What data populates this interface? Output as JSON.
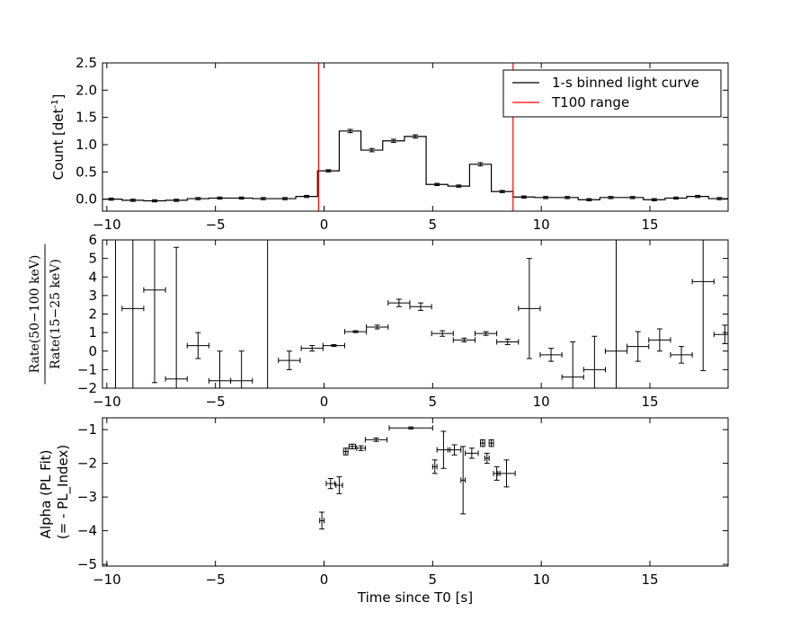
{
  "chart_data": [
    {
      "type": "line",
      "panel": "top",
      "ylabel": "Count [det",
      "ylabel_sup": "-1",
      "ylabel_end": "]",
      "xlim": [
        -10.2,
        18.6
      ],
      "ylim": [
        -0.22,
        2.5
      ],
      "x_ticks": [
        -10,
        -5,
        0,
        5,
        10,
        15
      ],
      "x_tick_labels": [
        "−10",
        "−5",
        "0",
        "5",
        "10",
        "15"
      ],
      "y_ticks": [
        0.0,
        0.5,
        1.0,
        1.5,
        2.0,
        2.5
      ],
      "y_tick_labels": [
        "0.0",
        "0.5",
        "1.0",
        "1.5",
        "2.0",
        "2.5"
      ],
      "legend": {
        "position": "top-right",
        "entries": [
          {
            "label": "1-s binned light curve",
            "color": "#000000"
          },
          {
            "label": "T100 range",
            "color": "#ff0000"
          }
        ]
      },
      "series": [
        {
          "name": "1-s binned light curve",
          "color": "#000000",
          "bin_width": 1.0,
          "bin_starts": [
            -10.3,
            -9.3,
            -8.3,
            -7.3,
            -6.3,
            -5.3,
            -4.3,
            -3.3,
            -2.3,
            -1.3,
            -0.3,
            0.7,
            1.7,
            2.7,
            3.7,
            4.7,
            5.7,
            6.7,
            7.7,
            8.7,
            9.7,
            10.7,
            11.7,
            12.7,
            13.7,
            14.7,
            15.7,
            16.7,
            17.7,
            18.7
          ],
          "values": [
            0.0,
            -0.02,
            -0.03,
            -0.02,
            0.01,
            0.02,
            0.02,
            0.01,
            0.01,
            0.05,
            0.52,
            1.25,
            0.9,
            1.07,
            1.15,
            0.27,
            0.24,
            0.64,
            0.14,
            0.04,
            0.03,
            0.03,
            -0.01,
            0.03,
            0.03,
            -0.01,
            0.02,
            0.05,
            0.01,
            0.0
          ],
          "errors": [
            0.02,
            0.02,
            0.02,
            0.02,
            0.02,
            0.02,
            0.02,
            0.02,
            0.02,
            0.02,
            0.02,
            0.03,
            0.03,
            0.03,
            0.03,
            0.02,
            0.02,
            0.03,
            0.02,
            0.02,
            0.02,
            0.02,
            0.02,
            0.02,
            0.02,
            0.02,
            0.02,
            0.02,
            0.02,
            0.02
          ]
        }
      ],
      "vlines": [
        {
          "name": "T100 range",
          "x": -0.25,
          "color": "#ff0000"
        },
        {
          "name": "T100 range",
          "x": 8.7,
          "color": "#ff0000"
        }
      ]
    },
    {
      "type": "scatter",
      "panel": "middle",
      "ylabel_numerator": "Rate(50−100 keV)",
      "ylabel_denominator": "Rate(15−25 keV)",
      "xlim": [
        -10.2,
        18.6
      ],
      "ylim": [
        -2,
        6
      ],
      "x_ticks": [
        -10,
        -5,
        0,
        5,
        10,
        15
      ],
      "x_tick_labels": [
        "−10",
        "−5",
        "0",
        "5",
        "10",
        "15"
      ],
      "y_ticks": [
        -2,
        -1,
        0,
        1,
        2,
        3,
        4,
        5,
        6
      ],
      "y_tick_labels": [
        "−2",
        "−1",
        "0",
        "1",
        "2",
        "3",
        "4",
        "5",
        "6"
      ],
      "points": [
        {
          "x": -8.8,
          "xerr": 0.5,
          "y": 2.3,
          "yerr_lo": 12.0,
          "yerr_hi": 12.0
        },
        {
          "x": -7.8,
          "xerr": 0.5,
          "y": 3.3,
          "yerr_lo": 5.0,
          "yerr_hi": 12.0
        },
        {
          "x": -6.8,
          "xerr": 0.5,
          "y": -1.5,
          "yerr_lo": 12.0,
          "yerr_hi": 7.1
        },
        {
          "x": -5.8,
          "xerr": 0.5,
          "y": 0.3,
          "yerr_lo": 0.7,
          "yerr_hi": 0.7
        },
        {
          "x": -4.8,
          "xerr": 0.5,
          "y": -1.6,
          "yerr_lo": 12.0,
          "yerr_hi": 1.6
        },
        {
          "x": -3.8,
          "xerr": 0.5,
          "y": -1.6,
          "yerr_lo": 12.0,
          "yerr_hi": 1.6
        },
        {
          "x": -1.6,
          "xerr": 0.5,
          "y": -0.5,
          "yerr_lo": 0.5,
          "yerr_hi": 0.5
        },
        {
          "x": -0.55,
          "xerr": 0.5,
          "y": 0.15,
          "yerr_lo": 0.15,
          "yerr_hi": 0.15
        },
        {
          "x": 0.45,
          "xerr": 0.5,
          "y": 0.3,
          "yerr_lo": 0.05,
          "yerr_hi": 0.05
        },
        {
          "x": 1.45,
          "xerr": 0.5,
          "y": 1.05,
          "yerr_lo": 0.05,
          "yerr_hi": 0.05
        },
        {
          "x": 2.45,
          "xerr": 0.5,
          "y": 1.3,
          "yerr_lo": 0.1,
          "yerr_hi": 0.1
        },
        {
          "x": 3.45,
          "xerr": 0.5,
          "y": 2.6,
          "yerr_lo": 0.2,
          "yerr_hi": 0.2
        },
        {
          "x": 4.45,
          "xerr": 0.5,
          "y": 2.4,
          "yerr_lo": 0.2,
          "yerr_hi": 0.2
        },
        {
          "x": 5.45,
          "xerr": 0.5,
          "y": 0.95,
          "yerr_lo": 0.15,
          "yerr_hi": 0.15
        },
        {
          "x": 6.45,
          "xerr": 0.5,
          "y": 0.6,
          "yerr_lo": 0.1,
          "yerr_hi": 0.1
        },
        {
          "x": 7.45,
          "xerr": 0.5,
          "y": 0.95,
          "yerr_lo": 0.1,
          "yerr_hi": 0.1
        },
        {
          "x": 8.45,
          "xerr": 0.5,
          "y": 0.5,
          "yerr_lo": 0.15,
          "yerr_hi": 0.15
        },
        {
          "x": 9.45,
          "xerr": 0.5,
          "y": 2.3,
          "yerr_lo": 2.7,
          "yerr_hi": 2.7
        },
        {
          "x": 10.45,
          "xerr": 0.5,
          "y": -0.2,
          "yerr_lo": 0.35,
          "yerr_hi": 0.35
        },
        {
          "x": 11.45,
          "xerr": 0.5,
          "y": -1.4,
          "yerr_lo": 1.9,
          "yerr_hi": 1.9
        },
        {
          "x": 12.45,
          "xerr": 0.5,
          "y": -1.0,
          "yerr_lo": 1.8,
          "yerr_hi": 1.8
        },
        {
          "x": 13.45,
          "xerr": 0.5,
          "y": 0.0,
          "yerr_lo": 12.0,
          "yerr_hi": 12.0
        },
        {
          "x": 14.45,
          "xerr": 0.5,
          "y": 0.25,
          "yerr_lo": 0.8,
          "yerr_hi": 0.8
        },
        {
          "x": 15.45,
          "xerr": 0.5,
          "y": 0.6,
          "yerr_lo": 0.6,
          "yerr_hi": 0.6
        },
        {
          "x": 16.45,
          "xerr": 0.5,
          "y": -0.2,
          "yerr_lo": 0.45,
          "yerr_hi": 0.45
        },
        {
          "x": 17.45,
          "xerr": 0.5,
          "y": 3.75,
          "yerr_lo": 4.8,
          "yerr_hi": 4.8
        },
        {
          "x": 18.45,
          "xerr": 0.5,
          "y": 0.9,
          "yerr_lo": 0.5,
          "yerr_hi": 0.5
        }
      ],
      "vertical_lines": [
        -9.6,
        -2.6
      ]
    },
    {
      "type": "scatter",
      "panel": "bottom",
      "xlabel": "Time since T0 [s]",
      "ylabel_line1": "Alpha (PL Fit)",
      "ylabel_line2": "(= - PL_Index)",
      "xlim": [
        -10.2,
        18.6
      ],
      "ylim": [
        -5.05,
        -0.65
      ],
      "x_ticks": [
        -10,
        -5,
        0,
        5,
        10,
        15
      ],
      "x_tick_labels": [
        "−10",
        "−5",
        "0",
        "5",
        "10",
        "15"
      ],
      "y_ticks": [
        -5,
        -4,
        -3,
        -2,
        -1
      ],
      "y_tick_labels": [
        "−5",
        "−4",
        "−3",
        "−2",
        "−1"
      ],
      "points": [
        {
          "x": -0.1,
          "xerr": 0.1,
          "y": -3.7,
          "yerr": 0.25
        },
        {
          "x": 0.3,
          "xerr": 0.2,
          "y": -2.6,
          "yerr": 0.15
        },
        {
          "x": 0.7,
          "xerr": 0.15,
          "y": -2.65,
          "yerr": 0.25
        },
        {
          "x": 1.0,
          "xerr": 0.1,
          "y": -1.65,
          "yerr": 0.1
        },
        {
          "x": 1.3,
          "xerr": 0.15,
          "y": -1.5,
          "yerr": 0.07
        },
        {
          "x": 1.7,
          "xerr": 0.2,
          "y": -1.55,
          "yerr": 0.07
        },
        {
          "x": 2.4,
          "xerr": 0.5,
          "y": -1.3,
          "yerr": 0.05
        },
        {
          "x": 4.0,
          "xerr": 1.0,
          "y": -0.95,
          "yerr": 0.03
        },
        {
          "x": 5.1,
          "xerr": 0.1,
          "y": -2.1,
          "yerr": 0.2
        },
        {
          "x": 5.5,
          "xerr": 0.3,
          "y": -1.6,
          "yerr": 0.55
        },
        {
          "x": 6.0,
          "xerr": 0.3,
          "y": -1.6,
          "yerr": 0.15
        },
        {
          "x": 6.4,
          "xerr": 0.1,
          "y": -2.5,
          "yerr": 1.0
        },
        {
          "x": 6.8,
          "xerr": 0.3,
          "y": -1.7,
          "yerr": 0.15
        },
        {
          "x": 7.3,
          "xerr": 0.1,
          "y": -1.4,
          "yerr": 0.1
        },
        {
          "x": 7.5,
          "xerr": 0.1,
          "y": -1.85,
          "yerr": 0.15
        },
        {
          "x": 7.7,
          "xerr": 0.1,
          "y": -1.4,
          "yerr": 0.1
        },
        {
          "x": 7.95,
          "xerr": 0.15,
          "y": -2.3,
          "yerr": 0.2
        },
        {
          "x": 8.4,
          "xerr": 0.4,
          "y": -2.3,
          "yerr": 0.4
        }
      ]
    }
  ]
}
